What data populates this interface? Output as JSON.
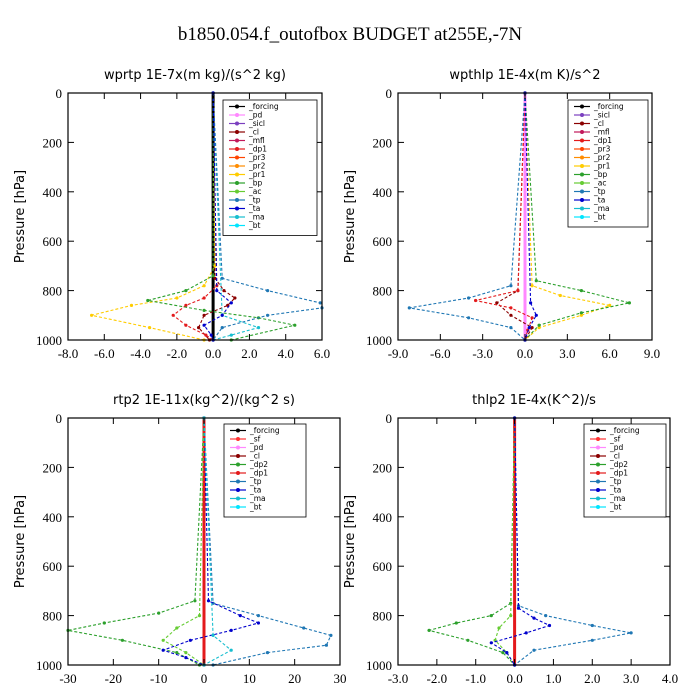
{
  "figure_title": "b1850.054.f_outofbox  BUDGET at255E,-7N",
  "chart_data": [
    {
      "type": "line",
      "title": "wprtp  1E-7x(m kg)/(s^2 kg)",
      "ylabel": "Pressure [hPa]",
      "xlim": [
        -8,
        6
      ],
      "ylim": [
        1000,
        0
      ],
      "xticks": [
        "-8.0",
        "-6.0",
        "-4.0",
        "-2.0",
        "0.0",
        "2.0",
        "4.0",
        "6.0"
      ],
      "yticks": [
        "0",
        "200",
        "400",
        "600",
        "800",
        "1000"
      ],
      "legend": [
        "_forcing",
        "_pd",
        "_sicl",
        "_cl",
        "_mfl",
        "_dp1",
        "_pr3",
        "_pr2",
        "_pr1",
        "_bp",
        "_ac",
        "_tp",
        "_ta",
        "_ma",
        "_bt"
      ],
      "series": [
        {
          "name": "_forcing",
          "color": "#000000",
          "p": [
            0,
            1000
          ],
          "x": [
            0,
            0
          ]
        },
        {
          "name": "_cl",
          "color": "#8b0000",
          "p": [
            0,
            750,
            800,
            830,
            860,
            900,
            950,
            1000
          ],
          "x": [
            0,
            0.1,
            0.6,
            1.2,
            0.8,
            -0.5,
            -0.8,
            -0.2
          ]
        },
        {
          "name": "_dp1",
          "color": "#e31a1c",
          "p": [
            0,
            780,
            830,
            860,
            900,
            940,
            980,
            1000
          ],
          "x": [
            0,
            0.2,
            -0.5,
            -1.5,
            -2.2,
            -1.5,
            -0.4,
            0
          ]
        },
        {
          "name": "_pr1",
          "color": "#ffcc00",
          "p": [
            0,
            700,
            780,
            830,
            860,
            900,
            950,
            1000
          ],
          "x": [
            0,
            0.1,
            -0.5,
            -2.0,
            -4.5,
            -6.7,
            -3.5,
            -0.5
          ]
        },
        {
          "name": "_bp",
          "color": "#2ca02c",
          "p": [
            0,
            740,
            800,
            840,
            880,
            910,
            940,
            1000
          ],
          "x": [
            0,
            0,
            -1.5,
            -3.6,
            -0.5,
            2.5,
            4.5,
            1.0
          ]
        },
        {
          "name": "_ac",
          "color": "#17becf",
          "p": [
            0,
            900,
            950,
            980,
            1000
          ],
          "x": [
            0,
            0.5,
            2.5,
            1.0,
            0
          ]
        },
        {
          "name": "_tp",
          "color": "#1f77b4",
          "p": [
            0,
            750,
            800,
            850,
            870,
            900,
            950,
            1000
          ],
          "x": [
            0,
            0.5,
            3.0,
            5.9,
            6.0,
            3.0,
            0.5,
            0
          ]
        },
        {
          "name": "_ta",
          "color": "#0000cd",
          "p": [
            0,
            800,
            850,
            900,
            940,
            980,
            1000
          ],
          "x": [
            0,
            0.2,
            1.0,
            0.5,
            -0.5,
            -0.1,
            0
          ]
        }
      ]
    },
    {
      "type": "line",
      "title": "wpthlp  1E-4x(m K)/s^2",
      "ylabel": "Pressure [hPa]",
      "xlim": [
        -9,
        9
      ],
      "ylim": [
        1000,
        0
      ],
      "xticks": [
        "-9.0",
        "-6.0",
        "-3.0",
        "0.0",
        "3.0",
        "6.0",
        "9.0"
      ],
      "yticks": [
        "0",
        "200",
        "400",
        "600",
        "800",
        "1000"
      ],
      "legend": [
        "_forcing",
        "_sicl",
        "_cl",
        "_mfl",
        "_dp1",
        "_pr3",
        "_pr2",
        "_pr1",
        "_bp",
        "_ac",
        "_tp",
        "_ta",
        "_ma",
        "_bt"
      ],
      "series": [
        {
          "name": "_forcing",
          "color": "#ff88ff",
          "p": [
            0,
            1000
          ],
          "x": [
            0,
            0
          ]
        },
        {
          "name": "_cl",
          "color": "#8b0000",
          "p": [
            0,
            800,
            850,
            900,
            950,
            1000
          ],
          "x": [
            0,
            -0.5,
            -2.0,
            -1.0,
            0.5,
            0
          ]
        },
        {
          "name": "_dp1",
          "color": "#e31a1c",
          "p": [
            0,
            800,
            840,
            870,
            910,
            960,
            1000
          ],
          "x": [
            0,
            -0.5,
            -3.5,
            -1.0,
            0.5,
            0.2,
            0
          ]
        },
        {
          "name": "_pr1",
          "color": "#ffcc00",
          "p": [
            0,
            780,
            820,
            860,
            900,
            950,
            1000
          ],
          "x": [
            0,
            0.5,
            2.5,
            6.0,
            4.0,
            1.0,
            0
          ]
        },
        {
          "name": "_bp",
          "color": "#2ca02c",
          "p": [
            0,
            760,
            800,
            850,
            890,
            940,
            1000
          ],
          "x": [
            0,
            0.8,
            4.0,
            7.4,
            4.0,
            1.0,
            0
          ]
        },
        {
          "name": "_tp",
          "color": "#1f77b4",
          "p": [
            0,
            780,
            830,
            870,
            910,
            950,
            1000
          ],
          "x": [
            0,
            -1.0,
            -4.0,
            -8.2,
            -4.0,
            -1.0,
            0
          ]
        },
        {
          "name": "_ta",
          "color": "#0000cd",
          "p": [
            0,
            850,
            900,
            950,
            1000
          ],
          "x": [
            0,
            0.4,
            0.8,
            0.3,
            0
          ]
        }
      ]
    },
    {
      "type": "line",
      "title": "rtp2  1E-11x(kg^2)/(kg^2 s)",
      "ylabel": "Pressure [hPa]",
      "xlim": [
        -30,
        30
      ],
      "ylim": [
        1000,
        0
      ],
      "xticks": [
        "-30",
        "-20",
        "-10",
        "0",
        "10",
        "20",
        "30"
      ],
      "yticks": [
        "0",
        "200",
        "400",
        "600",
        "800",
        "1000"
      ],
      "legend": [
        "_forcing",
        "_sf",
        "_pd",
        "_cl",
        "_dp2",
        "_dp1",
        "_tp",
        "_ta",
        "_ma",
        "_bt"
      ],
      "series": [
        {
          "name": "_forcing",
          "color": "#e31a1c",
          "p": [
            0,
            1000
          ],
          "x": [
            0,
            0
          ]
        },
        {
          "name": "_dp2",
          "color": "#2ca02c",
          "p": [
            0,
            740,
            790,
            830,
            860,
            900,
            950,
            1000
          ],
          "x": [
            0,
            -2,
            -10,
            -22,
            -30,
            -18,
            -6,
            -1
          ]
        },
        {
          "name": "_dp1",
          "color": "#66cc33",
          "p": [
            0,
            800,
            850,
            900,
            950,
            1000
          ],
          "x": [
            0,
            -1,
            -6,
            -9,
            -4,
            0
          ]
        },
        {
          "name": "_tp",
          "color": "#1f77b4",
          "p": [
            0,
            750,
            800,
            850,
            880,
            920,
            950,
            1000
          ],
          "x": [
            0,
            2,
            12,
            22,
            28,
            27,
            14,
            2
          ]
        },
        {
          "name": "_ta",
          "color": "#0000cd",
          "p": [
            0,
            740,
            800,
            830,
            860,
            900,
            940,
            970,
            1000
          ],
          "x": [
            0,
            1,
            8,
            12,
            6,
            -3,
            -9,
            -4,
            0
          ]
        },
        {
          "name": "_ma",
          "color": "#17becf",
          "p": [
            0,
            880,
            940,
            1000
          ],
          "x": [
            0,
            2,
            6,
            0
          ]
        }
      ]
    },
    {
      "type": "line",
      "title": "thlp2  1E-4x(K^2)/s",
      "ylabel": "Pressure [hPa]",
      "xlim": [
        -3,
        4
      ],
      "ylim": [
        1000,
        0
      ],
      "xticks": [
        "-3.0",
        "-2.0",
        "-1.0",
        "0.0",
        "1.0",
        "2.0",
        "3.0",
        "4.0"
      ],
      "yticks": [
        "0",
        "200",
        "400",
        "600",
        "800",
        "1000"
      ],
      "legend": [
        "_forcing",
        "_sf",
        "_pd",
        "_cl",
        "_dp2",
        "_dp1",
        "_tp",
        "_ta",
        "_ma",
        "_bt"
      ],
      "series": [
        {
          "name": "_forcing",
          "color": "#e31a1c",
          "p": [
            0,
            1000
          ],
          "x": [
            0,
            0
          ]
        },
        {
          "name": "_dp2",
          "color": "#2ca02c",
          "p": [
            0,
            750,
            800,
            830,
            860,
            900,
            950,
            1000
          ],
          "x": [
            0,
            -0.1,
            -0.6,
            -1.5,
            -2.2,
            -1.2,
            -0.3,
            0
          ]
        },
        {
          "name": "_dp1",
          "color": "#66cc33",
          "p": [
            0,
            800,
            850,
            900,
            950,
            1000
          ],
          "x": [
            0,
            -0.1,
            -0.4,
            -0.5,
            -0.2,
            0
          ]
        },
        {
          "name": "_tp",
          "color": "#1f77b4",
          "p": [
            0,
            760,
            800,
            840,
            870,
            900,
            940,
            1000
          ],
          "x": [
            0,
            0.1,
            0.8,
            2.0,
            3.0,
            2.0,
            0.5,
            0
          ]
        },
        {
          "name": "_ta",
          "color": "#0000cd",
          "p": [
            0,
            770,
            810,
            840,
            870,
            910,
            950,
            1000
          ],
          "x": [
            0,
            0.1,
            0.5,
            0.9,
            0.3,
            -0.6,
            -0.2,
            0
          ]
        }
      ]
    }
  ]
}
